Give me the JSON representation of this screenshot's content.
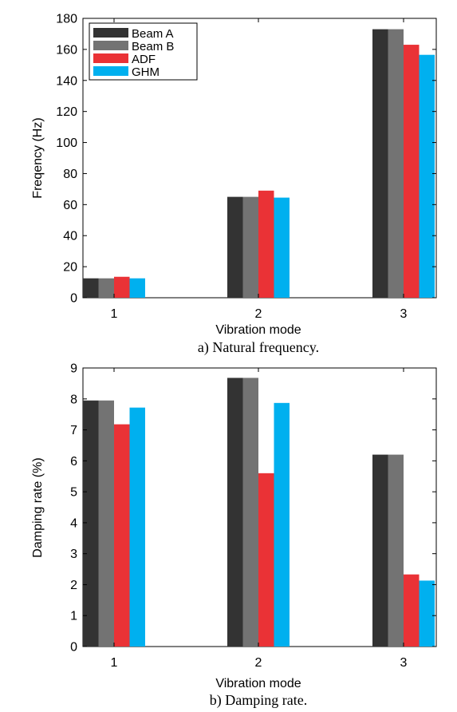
{
  "chart_data": [
    {
      "type": "bar",
      "categories": [
        "1",
        "2",
        "3"
      ],
      "series": [
        {
          "name": "Beam A",
          "color": "#333333",
          "values": [
            12.5,
            65,
            173
          ]
        },
        {
          "name": "Beam B",
          "color": "#737373",
          "values": [
            12.5,
            65,
            173
          ]
        },
        {
          "name": "ADF",
          "color": "#ea3236",
          "values": [
            13.5,
            69,
            163
          ]
        },
        {
          "name": "GHM",
          "color": "#00b0ef",
          "values": [
            12.5,
            64.5,
            156.5
          ]
        }
      ],
      "xlabel": "Vibration mode",
      "ylabel": "Freqency (Hz)",
      "ylim": [
        0,
        180
      ],
      "yticks": [
        "0",
        "20",
        "40",
        "60",
        "80",
        "100",
        "120",
        "140",
        "160",
        "180"
      ],
      "legend": "top-left",
      "caption": "a) Natural frequency.",
      "grid": false
    },
    {
      "type": "bar",
      "categories": [
        "1",
        "2",
        "3"
      ],
      "series": [
        {
          "name": "Beam A",
          "color": "#333333",
          "values": [
            7.95,
            8.68,
            6.2
          ]
        },
        {
          "name": "Beam B",
          "color": "#737373",
          "values": [
            7.95,
            8.68,
            6.2
          ]
        },
        {
          "name": "ADF",
          "color": "#ea3236",
          "values": [
            7.18,
            5.6,
            2.33
          ]
        },
        {
          "name": "GHM",
          "color": "#00b0ef",
          "values": [
            7.72,
            7.87,
            2.13
          ]
        }
      ],
      "xlabel": "Vibration mode",
      "ylabel": "Damping rate (%)",
      "ylim": [
        0,
        9
      ],
      "yticks": [
        "0",
        "1",
        "2",
        "3",
        "4",
        "5",
        "6",
        "7",
        "8",
        "9"
      ],
      "legend": "none",
      "caption": "b) Damping rate.",
      "grid": false
    }
  ]
}
